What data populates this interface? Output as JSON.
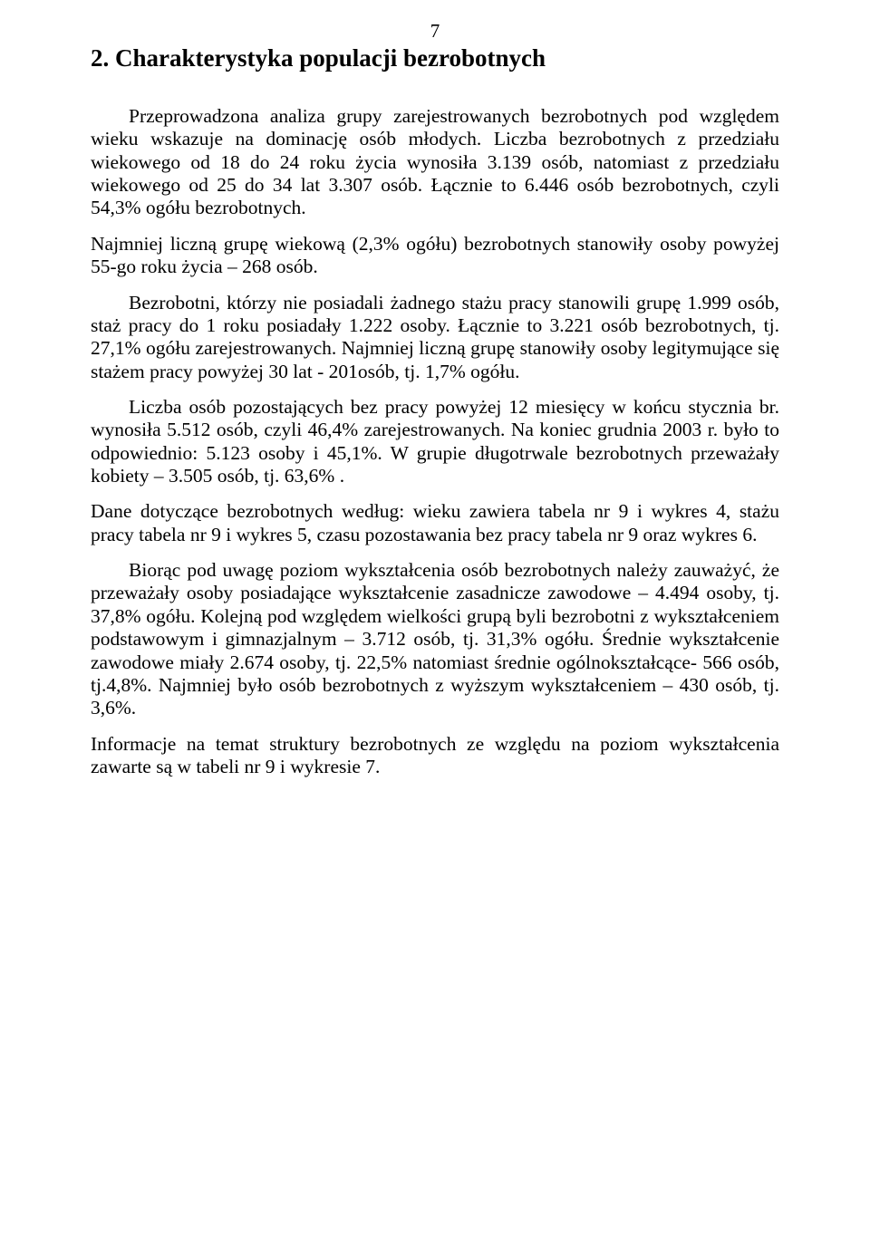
{
  "pageNumber": "7",
  "heading": "2. Charakterystyka populacji bezrobotnych",
  "paragraphs": [
    {
      "cls": "para indent",
      "text": "Przeprowadzona analiza grupy zarejestrowanych bezrobotnych pod względem wieku wskazuje na dominację osób młodych. Liczba bezrobotnych z przedziału wiekowego od 18 do 24 roku życia wynosiła 3.139 osób, natomiast z przedziału wiekowego od 25 do 34 lat 3.307 osób. Łącznie to 6.446 osób bezrobotnych, czyli 54,3% ogółu bezrobotnych."
    },
    {
      "cls": "para no-indent",
      "text": "Najmniej liczną grupę wiekową (2,3% ogółu) bezrobotnych stanowiły osoby powyżej 55-go roku życia – 268 osób."
    },
    {
      "cls": "para indent",
      "text": "Bezrobotni, którzy nie posiadali żadnego stażu pracy stanowili grupę 1.999 osób, staż pracy do 1 roku posiadały 1.222 osoby. Łącznie to 3.221 osób bezrobotnych, tj. 27,1% ogółu zarejestrowanych. Najmniej liczną grupę stanowiły osoby legitymujące się stażem pracy powyżej 30 lat - 201osób, tj. 1,7% ogółu."
    },
    {
      "cls": "para indent",
      "text": "Liczba osób pozostających bez pracy powyżej 12 miesięcy w końcu stycznia br. wynosiła 5.512 osób, czyli 46,4% zarejestrowanych. Na koniec grudnia 2003 r. było to odpowiednio: 5.123 osoby i 45,1%. W grupie długotrwale bezrobotnych przeważały kobiety – 3.505 osób, tj. 63,6% ."
    },
    {
      "cls": "para no-indent",
      "text": "Dane dotyczące bezrobotnych według: wieku zawiera tabela nr 9 i wykres 4, stażu pracy tabela nr 9 i wykres 5, czasu pozostawania bez pracy tabela nr 9 oraz wykres 6."
    },
    {
      "cls": "para indent",
      "text": "Biorąc pod uwagę poziom wykształcenia osób bezrobotnych należy zauważyć, że przeważały osoby posiadające wykształcenie zasadnicze zawodowe – 4.494 osoby, tj. 37,8% ogółu. Kolejną pod względem wielkości grupą byli bezrobotni z wykształceniem podstawowym i gimnazjalnym – 3.712 osób, tj. 31,3% ogółu. Średnie wykształcenie zawodowe miały 2.674 osoby, tj. 22,5% natomiast średnie ogólnokształcące- 566 osób, tj.4,8%. Najmniej było osób bezrobotnych z wyższym wykształceniem – 430 osób, tj. 3,6%."
    },
    {
      "cls": "para no-indent last",
      "text": "Informacje na temat struktury bezrobotnych ze względu na poziom wykształcenia zawarte są w tabeli nr 9 i wykresie 7."
    }
  ]
}
